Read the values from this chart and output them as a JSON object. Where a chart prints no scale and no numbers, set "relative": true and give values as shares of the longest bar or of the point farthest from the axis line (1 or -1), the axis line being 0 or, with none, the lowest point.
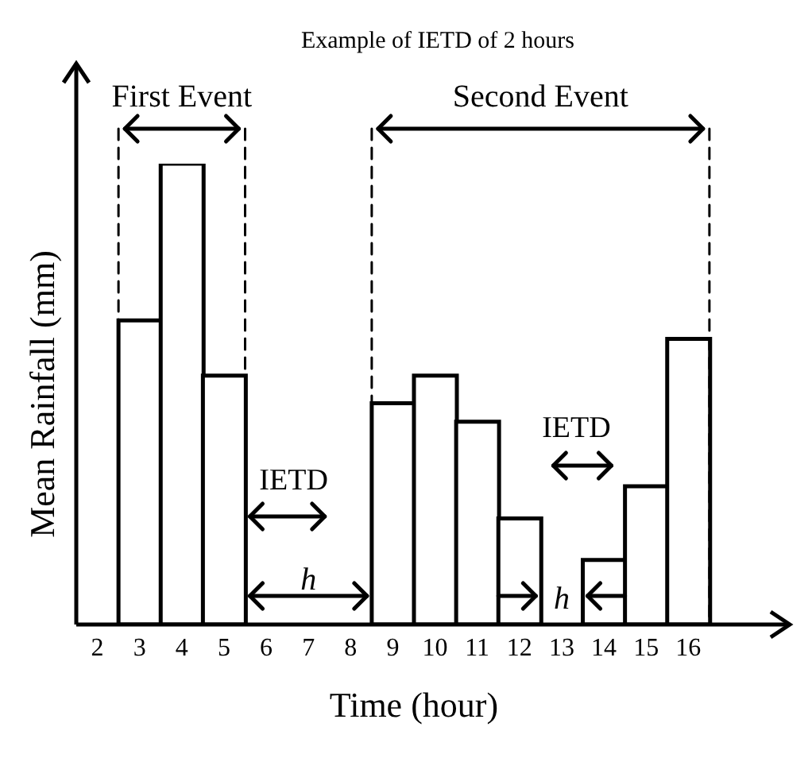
{
  "chart_data": {
    "type": "bar",
    "title": "Example of IETD of 2 hours",
    "xlabel": "Time (hour)",
    "ylabel": "Mean Rainfall (mm)",
    "categories": [
      "2",
      "3",
      "4",
      "5",
      "6",
      "7",
      "8",
      "9",
      "10",
      "11",
      "12",
      "13",
      "14",
      "15",
      "16",
      null
    ],
    "values": [
      null,
      0.66,
      1,
      0.54,
      null,
      null,
      null,
      0.48,
      0.54,
      0.44,
      0.23,
      null,
      0.14,
      0.3,
      0.62,
      null
    ],
    "color": "#ffffff",
    "relative": true,
    "annotations": [
      "First Event",
      "Second Event",
      "IETD",
      "IETD",
      "h",
      "h"
    ]
  }
}
